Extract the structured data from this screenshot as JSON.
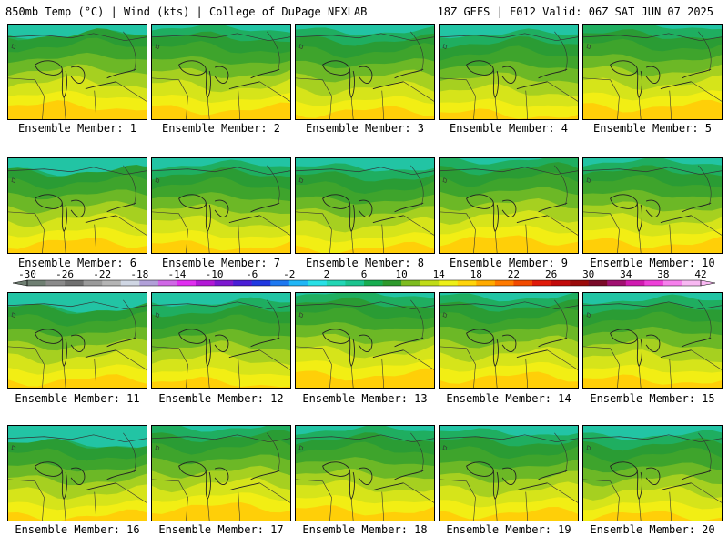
{
  "header": {
    "left": "850mb Temp (°C) | Wind (kts) | College of DuPage NEXLAB",
    "right": "18Z GEFS | F012 Valid: 06Z SAT JUN 07 2025"
  },
  "panels": [
    {
      "label": "Ensemble Member: 1"
    },
    {
      "label": "Ensemble Member: 2"
    },
    {
      "label": "Ensemble Member: 3"
    },
    {
      "label": "Ensemble Member: 4"
    },
    {
      "label": "Ensemble Member: 5"
    },
    {
      "label": "Ensemble Member: 6"
    },
    {
      "label": "Ensemble Member: 7"
    },
    {
      "label": "Ensemble Member: 8"
    },
    {
      "label": "Ensemble Member: 9"
    },
    {
      "label": "Ensemble Member: 10"
    },
    {
      "label": "Ensemble Member: 11"
    },
    {
      "label": "Ensemble Member: 12"
    },
    {
      "label": "Ensemble Member: 13"
    },
    {
      "label": "Ensemble Member: 14"
    },
    {
      "label": "Ensemble Member: 15"
    },
    {
      "label": "Ensemble Member: 16"
    },
    {
      "label": "Ensemble Member: 17"
    },
    {
      "label": "Ensemble Member: 18"
    },
    {
      "label": "Ensemble Member: 19"
    },
    {
      "label": "Ensemble Member: 20"
    }
  ],
  "colorbar": {
    "ticks": [
      "-30",
      "-26",
      "-22",
      "-18",
      "-14",
      "-10",
      "-6",
      "-2",
      "2",
      "6",
      "10",
      "14",
      "18",
      "22",
      "26",
      "30",
      "34",
      "38",
      "42"
    ],
    "colors": [
      "#6f7f72",
      "#8a8a8a",
      "#707070",
      "#9a9a9a",
      "#b4b4b4",
      "#cfd6e3",
      "#b1a0d8",
      "#d068e6",
      "#e02ef0",
      "#b218d6",
      "#7d18d0",
      "#4a1ed6",
      "#2038e0",
      "#1e78f0",
      "#20b6f6",
      "#28e0e6",
      "#22d6b4",
      "#1cc48e",
      "#18ad50",
      "#2e9a2c",
      "#7ebc20",
      "#c0dc18",
      "#eef018",
      "#ffd40a",
      "#ffaa00",
      "#ff7a00",
      "#f24a00",
      "#e01a0a",
      "#c20a0a",
      "#9a0a0a",
      "#7a0a28",
      "#a01070",
      "#d01ab0",
      "#ee40d8",
      "#f680ec",
      "#f8b8f2"
    ]
  }
}
